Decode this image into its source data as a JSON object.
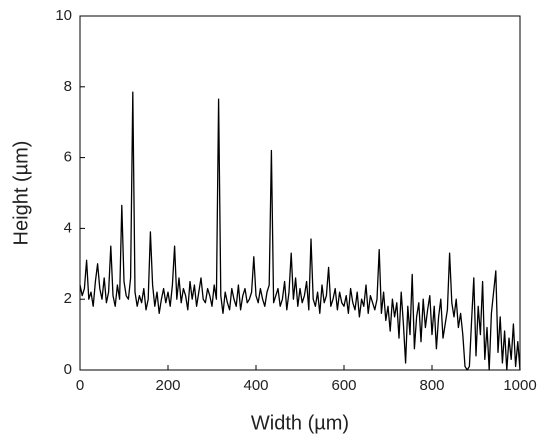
{
  "chart_data": {
    "type": "line",
    "xlabel": "Width (µm)",
    "ylabel": "Height (µm)",
    "x": [
      0,
      5,
      10,
      15,
      20,
      25,
      30,
      35,
      40,
      45,
      50,
      55,
      60,
      65,
      70,
      75,
      80,
      85,
      90,
      95,
      100,
      105,
      110,
      115,
      120,
      125,
      130,
      135,
      140,
      145,
      150,
      155,
      160,
      165,
      170,
      175,
      180,
      185,
      190,
      195,
      200,
      205,
      210,
      215,
      220,
      225,
      230,
      235,
      240,
      245,
      250,
      255,
      260,
      265,
      270,
      275,
      280,
      285,
      290,
      295,
      300,
      305,
      310,
      315,
      320,
      325,
      330,
      335,
      340,
      345,
      350,
      355,
      360,
      365,
      370,
      375,
      380,
      385,
      390,
      395,
      400,
      405,
      410,
      415,
      420,
      425,
      430,
      435,
      440,
      445,
      450,
      455,
      460,
      465,
      470,
      475,
      480,
      485,
      490,
      495,
      500,
      505,
      510,
      515,
      520,
      525,
      530,
      535,
      540,
      545,
      550,
      555,
      560,
      565,
      570,
      575,
      580,
      585,
      590,
      595,
      600,
      605,
      610,
      615,
      620,
      625,
      630,
      635,
      640,
      645,
      650,
      655,
      660,
      665,
      670,
      675,
      680,
      685,
      690,
      695,
      700,
      705,
      710,
      715,
      720,
      725,
      730,
      735,
      740,
      745,
      750,
      755,
      760,
      765,
      770,
      775,
      780,
      785,
      790,
      795,
      800,
      805,
      810,
      815,
      820,
      825,
      830,
      835,
      840,
      845,
      850,
      855,
      860,
      865,
      870,
      875,
      880,
      885,
      890,
      895,
      900,
      905,
      910,
      915,
      920,
      925,
      930,
      935,
      940,
      945,
      950,
      955,
      960,
      965,
      970,
      975,
      980,
      985,
      990,
      995,
      1000
    ],
    "series": [
      {
        "color": "#000000",
        "values": [
          2.4,
          2.1,
          2.3,
          3.1,
          2.0,
          2.2,
          1.8,
          2.5,
          3.0,
          2.3,
          2.0,
          2.6,
          1.9,
          2.2,
          3.5,
          2.1,
          1.8,
          2.4,
          2.0,
          4.65,
          2.5,
          2.1,
          2.0,
          2.6,
          7.85,
          2.2,
          1.8,
          2.1,
          1.9,
          2.3,
          1.7,
          2.0,
          3.9,
          2.4,
          1.8,
          2.2,
          1.6,
          2.0,
          2.3,
          1.9,
          2.2,
          1.8,
          2.4,
          3.5,
          2.0,
          2.6,
          1.9,
          2.3,
          2.1,
          1.7,
          2.5,
          2.0,
          2.4,
          1.8,
          2.2,
          2.6,
          2.0,
          1.9,
          2.3,
          2.1,
          1.8,
          2.4,
          2.0,
          7.65,
          2.1,
          1.6,
          2.2,
          1.9,
          1.7,
          2.3,
          2.0,
          1.8,
          2.4,
          1.7,
          2.1,
          2.3,
          1.9,
          2.0,
          2.2,
          3.2,
          2.1,
          1.9,
          2.3,
          2.0,
          1.8,
          2.2,
          2.4,
          6.2,
          1.9,
          2.1,
          2.3,
          1.8,
          2.0,
          2.5,
          1.7,
          2.2,
          3.3,
          2.0,
          2.6,
          1.8,
          2.3,
          1.9,
          2.1,
          2.5,
          1.7,
          3.7,
          2.0,
          1.8,
          2.2,
          1.6,
          2.4,
          1.9,
          2.1,
          2.9,
          1.8,
          2.0,
          2.3,
          1.7,
          2.2,
          1.9,
          1.8,
          2.1,
          1.6,
          2.3,
          1.9,
          1.7,
          2.2,
          1.5,
          2.0,
          1.8,
          2.4,
          1.6,
          2.1,
          1.9,
          1.7,
          2.0,
          3.4,
          1.6,
          2.2,
          1.4,
          1.8,
          1.1,
          2.0,
          1.5,
          1.9,
          0.9,
          2.2,
          1.3,
          0.2,
          1.8,
          1.0,
          2.7,
          0.6,
          1.5,
          1.9,
          0.8,
          2.0,
          1.2,
          1.7,
          2.1,
          1.0,
          1.8,
          0.6,
          1.5,
          2.0,
          0.9,
          1.3,
          1.7,
          3.3,
          1.9,
          1.5,
          2.0,
          1.2,
          1.6,
          1.0,
          0.1,
          0.0,
          0.1,
          1.4,
          2.6,
          0.4,
          1.8,
          1.0,
          2.5,
          0.3,
          1.2,
          0.0,
          1.6,
          2.2,
          2.8,
          0.5,
          1.5,
          0.2,
          1.1,
          0.0,
          0.9,
          0.3,
          1.3,
          0.1,
          0.8,
          0.0
        ]
      }
    ],
    "xlim": [
      0,
      1000
    ],
    "xticks": [
      0,
      200,
      400,
      600,
      800,
      1000
    ],
    "ylim": [
      0,
      10
    ],
    "yticks": [
      0,
      2,
      4,
      6,
      8,
      10
    ]
  }
}
